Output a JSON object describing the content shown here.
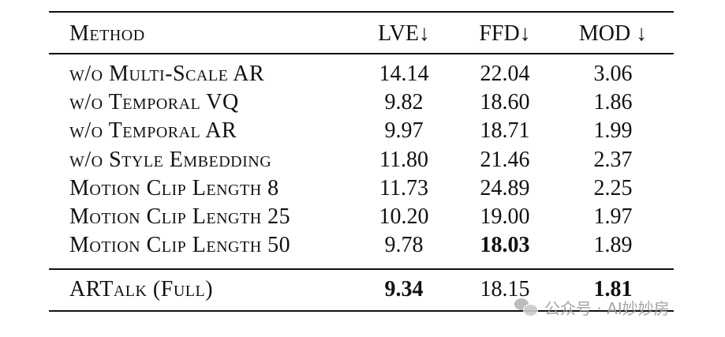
{
  "table": {
    "headers": {
      "method": "Method",
      "lve": "LVE↓",
      "ffd": "FFD↓",
      "mod": "MOD ↓"
    },
    "rows": [
      {
        "method": "w/o Multi-Scale AR",
        "lve": "14.14",
        "ffd": "22.04",
        "mod": "3.06"
      },
      {
        "method": "w/o Temporal VQ",
        "lve": "9.82",
        "ffd": "18.60",
        "mod": "1.86"
      },
      {
        "method": "w/o Temporal AR",
        "lve": "9.97",
        "ffd": "18.71",
        "mod": "1.99"
      },
      {
        "method": "w/o Style Embedding",
        "lve": "11.80",
        "ffd": "21.46",
        "mod": "2.37"
      },
      {
        "method": "Motion Clip Length 8",
        "lve": "11.73",
        "ffd": "24.89",
        "mod": "2.25"
      },
      {
        "method": "Motion Clip Length 25",
        "lve": "10.20",
        "ffd": "19.00",
        "mod": "1.97"
      },
      {
        "method": "Motion Clip Length 50",
        "lve": "9.78",
        "ffd": "18.03",
        "mod": "1.89"
      }
    ],
    "full_row": {
      "method": "ARTalk (Full)",
      "lve": "9.34",
      "ffd": "18.15",
      "mod": "1.81"
    }
  },
  "watermark": {
    "text": "公众号 · AI妙妙房",
    "icon": "wechat-icon"
  }
}
